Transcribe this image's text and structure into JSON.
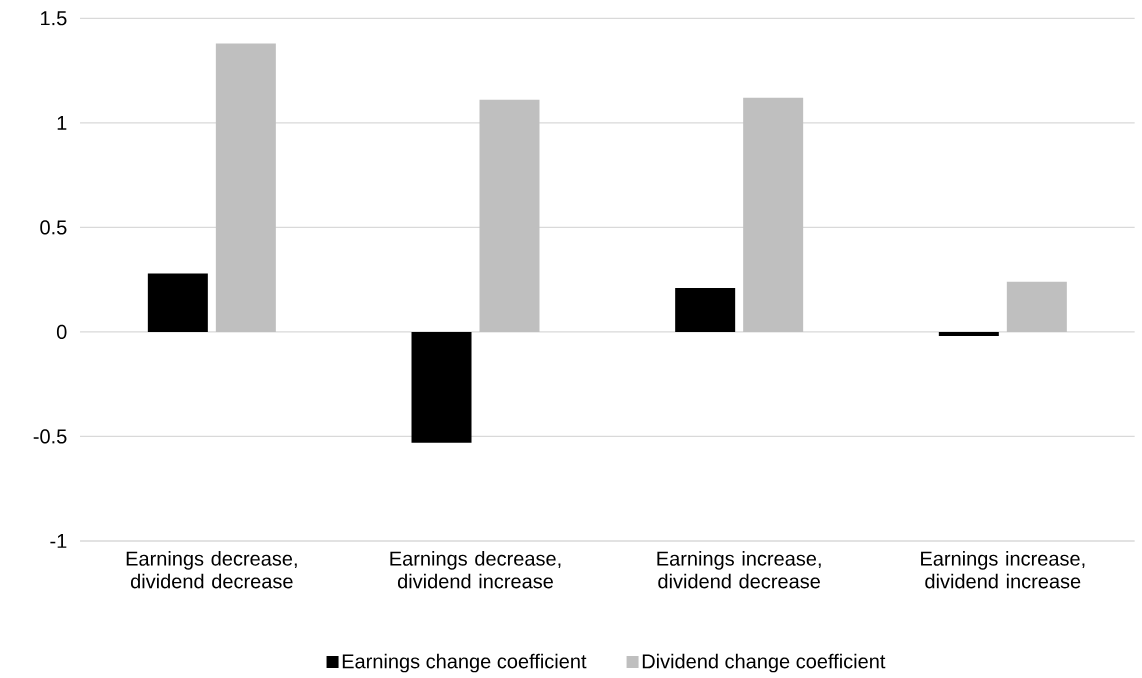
{
  "chart_data": {
    "type": "bar",
    "categories": [
      "Earnings decrease, dividend decrease",
      "Earnings decrease, dividend increase",
      "Earnings increase, dividend decrease",
      "Earnings increase, dividend increase"
    ],
    "series": [
      {
        "name": "Earnings change coefficient",
        "color": "#000000",
        "values": [
          0.28,
          -0.53,
          0.21,
          -0.02
        ]
      },
      {
        "name": "Dividend change coefficient",
        "color": "#bfbfbf",
        "values": [
          1.38,
          1.11,
          1.12,
          0.24
        ]
      }
    ],
    "ylim": [
      -1,
      1.5
    ],
    "yticks": [
      -1,
      -0.5,
      0,
      0.5,
      1,
      1.5
    ],
    "grid": "y",
    "legend": "bottom"
  }
}
